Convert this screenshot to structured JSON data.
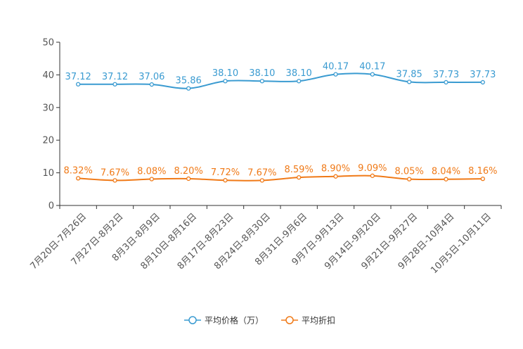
{
  "chart_data": {
    "type": "line",
    "title": "",
    "xlabel": "",
    "ylabel": "",
    "ylim": [
      0,
      50
    ],
    "yticks": [
      0,
      10,
      20,
      30,
      40,
      50
    ],
    "grid": false,
    "legend_position": "bottom-center",
    "categories": [
      "7月20日-7月26日",
      "7月27日-8月2日",
      "8月3日-8月9日",
      "8月10日-8月16日",
      "8月17日-8月23日",
      "8月24日-8月30日",
      "8月31日-9月6日",
      "9月7日-9月13日",
      "9月14日-9月20日",
      "9月21日-9月27日",
      "9月28日-10月4日",
      "10月5日-10月11日"
    ],
    "series": [
      {
        "name": "平均价格（万）",
        "color": "#3a9bd1",
        "values": [
          37.12,
          37.12,
          37.06,
          35.86,
          38.1,
          38.1,
          38.1,
          40.17,
          40.17,
          37.85,
          37.73,
          37.73
        ],
        "labels": [
          "37.12",
          "37.12",
          "37.06",
          "35.86",
          "38.10",
          "38.10",
          "38.10",
          "40.17",
          "40.17",
          "37.85",
          "37.73",
          "37.73"
        ]
      },
      {
        "name": "平均折扣",
        "color": "#f07a18",
        "values": [
          8.32,
          7.67,
          8.08,
          8.2,
          7.72,
          7.67,
          8.59,
          8.9,
          9.09,
          8.05,
          8.04,
          8.16
        ],
        "labels": [
          "8.32%",
          "7.67%",
          "8.08%",
          "8.20%",
          "7.72%",
          "7.67%",
          "8.59%",
          "8.90%",
          "9.09%",
          "8.05%",
          "8.04%",
          "8.16%"
        ]
      }
    ]
  }
}
